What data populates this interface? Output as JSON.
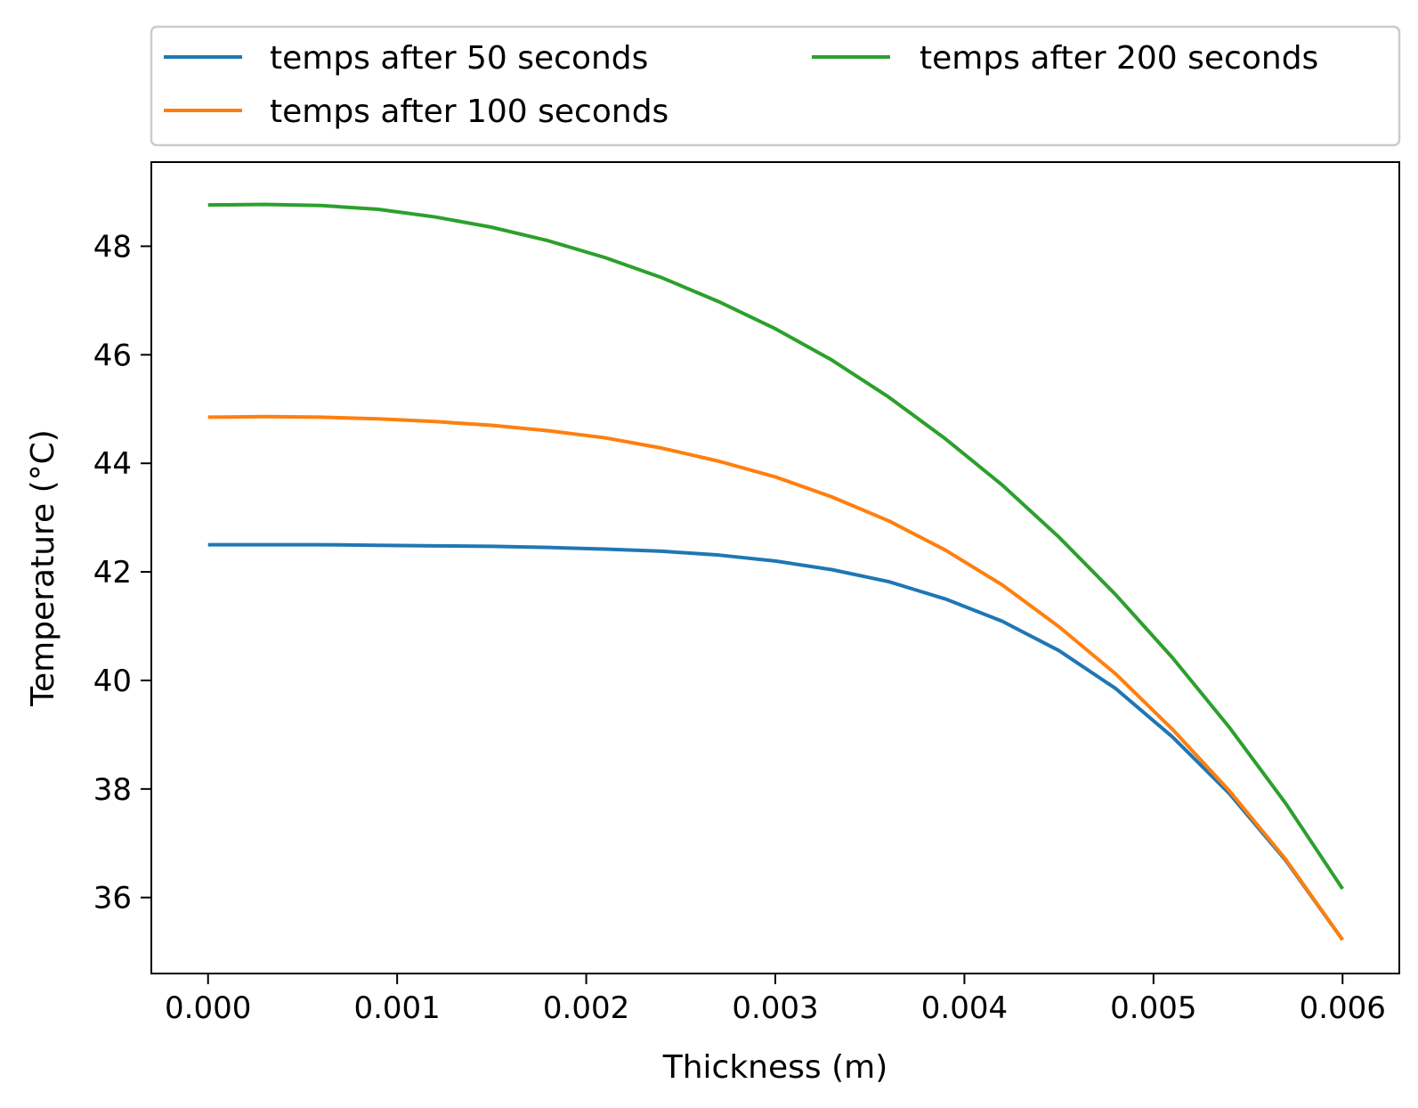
{
  "chart_data": {
    "type": "line",
    "xlabel": "Thickness (m)",
    "ylabel": "Temperature (°C)",
    "xlim": [
      -0.0003,
      0.0063
    ],
    "ylim": [
      34.6,
      49.55
    ],
    "xticks": [
      0.0,
      0.001,
      0.002,
      0.003,
      0.004,
      0.005,
      0.006
    ],
    "xtick_labels": [
      "0.000",
      "0.001",
      "0.002",
      "0.003",
      "0.004",
      "0.005",
      "0.006"
    ],
    "yticks": [
      36,
      38,
      40,
      42,
      44,
      46,
      48
    ],
    "ytick_labels": [
      "36",
      "38",
      "40",
      "42",
      "44",
      "46",
      "48"
    ],
    "grid": false,
    "legend_position": "above plot, two columns",
    "x": [
      0.0,
      0.0003,
      0.0006,
      0.0009,
      0.0012,
      0.0015,
      0.0018,
      0.0021,
      0.0024,
      0.0027,
      0.003,
      0.0033,
      0.0036,
      0.0039,
      0.0042,
      0.0045,
      0.0048,
      0.0051,
      0.0054,
      0.0057,
      0.006
    ],
    "series": [
      {
        "name": "temps after 50 seconds",
        "color": "#1f77b4",
        "values": [
          42.5,
          42.5,
          42.5,
          42.49,
          42.48,
          42.47,
          42.45,
          42.42,
          42.38,
          42.31,
          42.2,
          42.04,
          41.82,
          41.5,
          41.09,
          40.55,
          39.85,
          38.96,
          37.92,
          36.68,
          35.22
        ]
      },
      {
        "name": "temps after 100 seconds",
        "color": "#ff7f0e",
        "values": [
          44.85,
          44.86,
          44.85,
          44.82,
          44.77,
          44.7,
          44.6,
          44.47,
          44.28,
          44.04,
          43.75,
          43.38,
          42.94,
          42.4,
          41.76,
          40.99,
          40.12,
          39.1,
          37.97,
          36.7,
          35.22
        ]
      },
      {
        "name": "temps after 200 seconds",
        "color": "#2ca02c",
        "values": [
          48.76,
          48.77,
          48.75,
          48.68,
          48.54,
          48.35,
          48.1,
          47.79,
          47.42,
          46.98,
          46.48,
          45.9,
          45.22,
          44.45,
          43.6,
          42.64,
          41.58,
          40.42,
          39.14,
          37.73,
          36.16
        ]
      }
    ]
  }
}
